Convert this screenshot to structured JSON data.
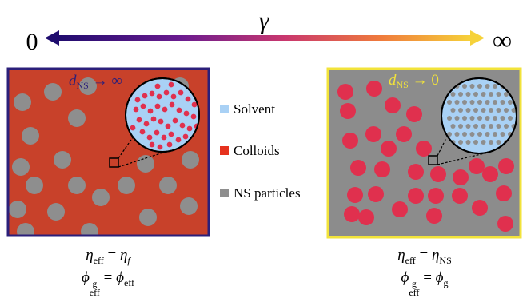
{
  "header": {
    "parameter_symbol": "γ",
    "left_end": "0",
    "right_end": "∞"
  },
  "left_panel": {
    "label_main": "d",
    "label_sub": "NS",
    "label_rest": " → ∞",
    "frame_color": "#2b1f7a",
    "fill_color": "#c8412a",
    "particle_color": "#8e8e8e",
    "inset_colloid_color": "#e0304e",
    "caption": {
      "line1_lhs": "η",
      "line1_lhs_sub": "eff",
      "line1_eq": " = ",
      "line1_rhs": "η",
      "line1_rhs_sub": "f",
      "line2_lhs": "ϕ",
      "line2_lhs_sup": "g",
      "line2_lhs_sub": "eff",
      "line2_eq": " = ",
      "line2_rhs": "ϕ",
      "line2_rhs_sub": "eff"
    }
  },
  "right_panel": {
    "label_main": "d",
    "label_sub": "NS",
    "label_rest": " → 0",
    "frame_color": "#f2e33a",
    "fill_color": "#8c8c8c",
    "colloid_color": "#e0304e",
    "inset_dot_color": "#8e8e8e",
    "caption": {
      "line1_lhs": "η",
      "line1_lhs_sub": "eff",
      "line1_eq": " = ",
      "line1_rhs": "η",
      "line1_rhs_sub": "NS",
      "line2_lhs": "ϕ",
      "line2_lhs_sup": "g",
      "line2_lhs_sub": "eff",
      "line2_eq": " = ",
      "line2_rhs": "ϕ",
      "line2_rhs_sub": "g"
    }
  },
  "legend": [
    {
      "label": "Solvent",
      "color": "#a9d1f5"
    },
    {
      "label": "Colloids",
      "color": "#e6321e"
    },
    {
      "label": "NS particles",
      "color": "#8e8e8e"
    }
  ],
  "gradient": [
    "#1f0c6e",
    "#6a1b8f",
    "#c9376e",
    "#ef7a3c",
    "#f6d23a"
  ]
}
